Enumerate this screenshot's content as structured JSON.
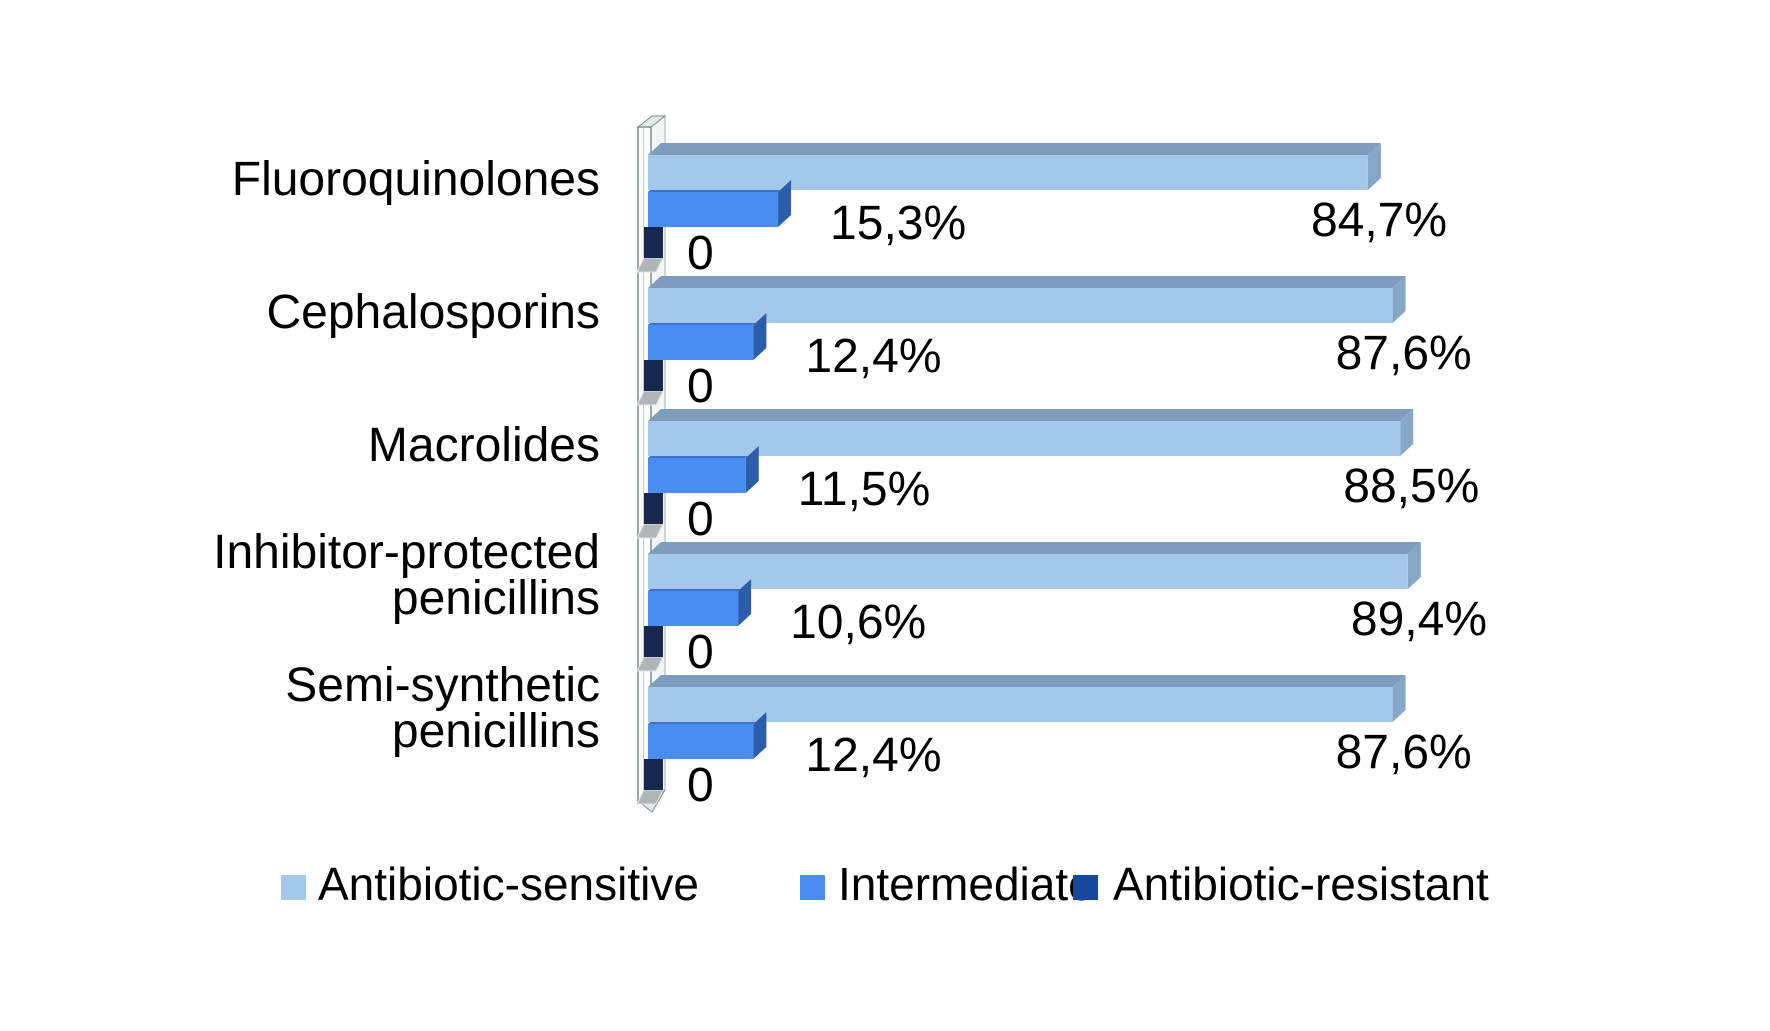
{
  "chart_data": {
    "type": "bar",
    "orientation": "horizontal",
    "style": "3d-extruded",
    "title": "",
    "xlabel": "",
    "ylabel": "",
    "xlim": [
      0,
      100
    ],
    "gridlines": false,
    "background_color": "#ffffff",
    "text_color": "#000000",
    "wall_outline_color": "#78908c",
    "categories": [
      {
        "label": "Fluoroquinolones",
        "lines": [
          "Fluoroquinolones"
        ]
      },
      {
        "label": "Cephalosporins",
        "lines": [
          "Cephalosporins"
        ]
      },
      {
        "label": "Macrolides",
        "lines": [
          "Macrolides"
        ]
      },
      {
        "label": "Inhibitor-protected penicillins",
        "lines": [
          "Inhibitor-protected",
          "penicillins"
        ]
      },
      {
        "label": "Semi-synthetic penicillins",
        "lines": [
          "Semi-synthetic",
          "penicillins"
        ]
      }
    ],
    "series": [
      {
        "name": "Antibiotic-sensitive",
        "color": "#a5c8ea",
        "top_color": "#7f9cbc",
        "side_color": "#87a7c9",
        "values": [
          84.7,
          87.6,
          88.5,
          89.4,
          87.6
        ],
        "labels": [
          "84,7%",
          "87,6%",
          "88,5%",
          "89,4%",
          "87,6%"
        ]
      },
      {
        "name": "Intermediate",
        "color": "#4a8cf0",
        "top_color": "#3a73c9",
        "side_color": "#2c5dab",
        "values": [
          15.3,
          12.4,
          11.5,
          10.6,
          12.4
        ],
        "labels": [
          "15,3%",
          "12,4%",
          "11,5%",
          "10,6%",
          "12,4%"
        ]
      },
      {
        "name": "Antibiotic-resistant",
        "color": "#17479c",
        "bar_face_color": "#17274e",
        "shadow_color": "#b0b6b8",
        "values": [
          0,
          0,
          0,
          0,
          0
        ],
        "labels": [
          "0",
          "0",
          "0",
          "0",
          "0"
        ]
      }
    ],
    "legend": {
      "position": "bottom",
      "items": [
        "Antibiotic-sensitive",
        "Intermediate",
        "Antibiotic-resistant"
      ]
    },
    "value_format": "comma-decimal-percent"
  }
}
